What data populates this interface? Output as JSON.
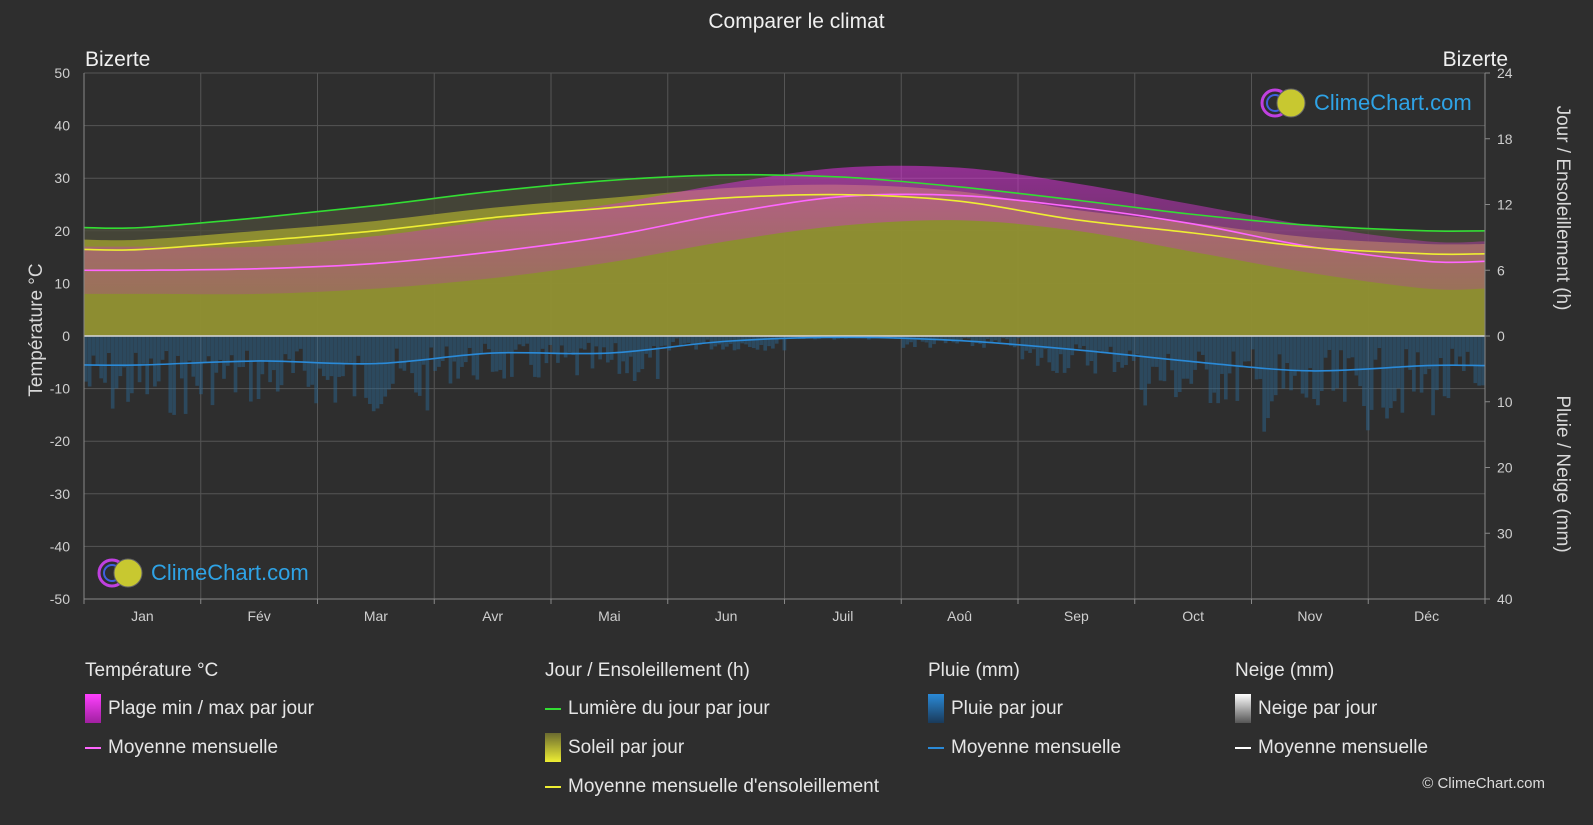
{
  "header": {
    "title": "Comparer le climat",
    "location_left": "Bizerte",
    "location_right": "Bizerte"
  },
  "axes": {
    "left_label": "Température °C",
    "right_top_label": "Jour / Ensoleillement (h)",
    "right_bottom_label": "Pluie / Neige (mm)",
    "left_ticks": [
      "50",
      "40",
      "30",
      "20",
      "10",
      "0",
      "-10",
      "-20",
      "-30",
      "-40",
      "-50"
    ],
    "right_top_ticks": [
      "24",
      "18",
      "12",
      "6",
      "0"
    ],
    "right_bottom_ticks": [
      "10",
      "20",
      "30",
      "40"
    ]
  },
  "chart_data": {
    "type": "line",
    "categories": [
      "Jan",
      "Fév",
      "Mar",
      "Avr",
      "Mai",
      "Jun",
      "Juil",
      "Aoû",
      "Sep",
      "Oct",
      "Nov",
      "Déc"
    ],
    "temperature_axis": {
      "unit": "°C",
      "ylim": [
        -50,
        50
      ]
    },
    "sun_axis": {
      "unit": "h",
      "ylim": [
        0,
        24
      ]
    },
    "precip_axis": {
      "unit": "mm",
      "ylim": [
        0,
        40
      ],
      "inverted": true
    },
    "series": [
      {
        "name": "Moyenne mensuelle",
        "group": "Température °C",
        "color": "#ff66ff",
        "values": [
          12.5,
          12.8,
          13.8,
          16.0,
          19.0,
          23.3,
          26.5,
          26.7,
          24.5,
          21.3,
          17.0,
          14.2
        ]
      },
      {
        "name": "Lumière du jour par jour",
        "group": "Jour / Ensoleillement (h)",
        "color": "#33dd33",
        "values": [
          9.9,
          10.8,
          11.9,
          13.2,
          14.2,
          14.7,
          14.5,
          13.6,
          12.4,
          11.1,
          10.1,
          9.6
        ]
      },
      {
        "name": "Moyenne mensuelle d'ensoleillement",
        "group": "Jour / Ensoleillement (h)",
        "color": "#eeee33",
        "values": [
          7.9,
          8.7,
          9.6,
          10.8,
          11.7,
          12.6,
          12.9,
          12.3,
          10.6,
          9.4,
          8.1,
          7.5
        ]
      },
      {
        "name": "Moyenne mensuelle",
        "group": "Pluie (mm)",
        "color": "#2a8ad8",
        "values": [
          4.4,
          3.8,
          4.2,
          2.6,
          2.6,
          0.8,
          0.2,
          0.7,
          2.1,
          3.9,
          5.3,
          4.5
        ]
      }
    ],
    "temperature_daily_range": {
      "min": [
        8,
        8,
        9,
        11,
        14,
        18,
        21,
        22,
        20,
        16,
        12,
        9
      ],
      "max": [
        17,
        17,
        19,
        22,
        25,
        29,
        32,
        32,
        29,
        25,
        21,
        18
      ]
    },
    "legend_position": "bottom"
  },
  "legend": {
    "temp": {
      "head": "Température °C",
      "item1": "Plage min / max par jour",
      "item2": "Moyenne mensuelle"
    },
    "sun": {
      "head": "Jour / Ensoleillement (h)",
      "item1": "Lumière du jour par jour",
      "item2": "Soleil par jour",
      "item3": "Moyenne mensuelle d'ensoleillement"
    },
    "rain": {
      "head": "Pluie (mm)",
      "item1": "Pluie par jour",
      "item2": "Moyenne mensuelle"
    },
    "snow": {
      "head": "Neige (mm)",
      "item1": "Neige par jour",
      "item2": "Moyenne mensuelle"
    }
  },
  "colors": {
    "background": "#2e2e2e",
    "temp_range": "#e030e0",
    "daylight": "#33dd33",
    "sun_fill": "#9a9a30",
    "rain": "#2a8ad8",
    "snow": "#ffffff",
    "brand": "#2ea3e6"
  },
  "brand": {
    "name": "ClimeChart.com"
  },
  "footer": {
    "copyright": "© ClimeChart.com"
  }
}
